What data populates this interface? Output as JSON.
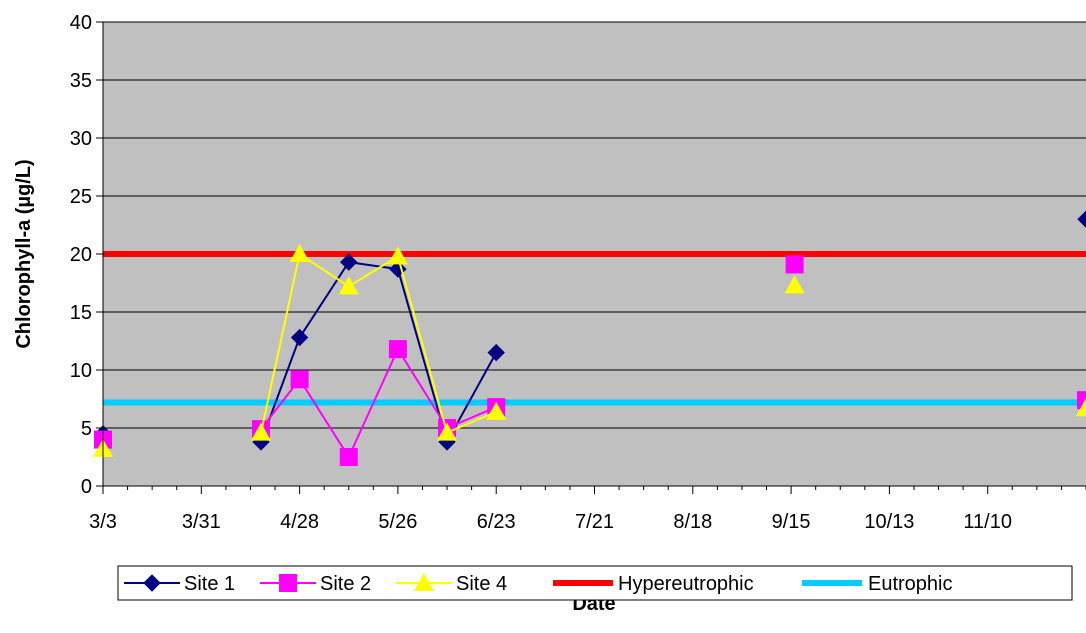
{
  "chart_data": {
    "type": "line",
    "title": "",
    "xlabel": "Date",
    "ylabel": "Chlorophyll-a (µg/L)",
    "ylim": [
      0,
      40
    ],
    "y_ticks": [
      0,
      5,
      10,
      15,
      20,
      25,
      30,
      35,
      40
    ],
    "x_ticks": [
      "3/3",
      "3/31",
      "4/28",
      "5/26",
      "6/23",
      "7/21",
      "8/18",
      "9/15",
      "10/13",
      "11/10"
    ],
    "xlim": [
      "3/3",
      "12/8"
    ],
    "grid": "horizontal",
    "plot_background": "#c0c0c0",
    "legend_position": "bottom",
    "series": [
      {
        "name": "Site 1",
        "marker": "diamond",
        "color": "#000080",
        "points": [
          {
            "x": "3/3",
            "y": 4.5
          },
          {
            "x": "4/17",
            "y": 3.8
          },
          {
            "x": "4/28",
            "y": 12.8
          },
          {
            "x": "5/12",
            "y": 19.3
          },
          {
            "x": "5/26",
            "y": 18.7
          },
          {
            "x": "6/9",
            "y": 3.8
          },
          {
            "x": "6/23",
            "y": 11.5
          },
          {
            "x": "12/8",
            "y": 23.0
          }
        ]
      },
      {
        "name": "Site 2",
        "marker": "square",
        "color": "#ff00ff",
        "points": [
          {
            "x": "3/3",
            "y": 4.0
          },
          {
            "x": "4/17",
            "y": 4.9
          },
          {
            "x": "4/28",
            "y": 9.2
          },
          {
            "x": "5/12",
            "y": 2.5
          },
          {
            "x": "5/26",
            "y": 11.8
          },
          {
            "x": "6/9",
            "y": 5.0
          },
          {
            "x": "6/23",
            "y": 6.8
          },
          {
            "x": "9/16",
            "y": 19.1
          },
          {
            "x": "12/8",
            "y": 7.4
          }
        ]
      },
      {
        "name": "Site 4",
        "marker": "triangle",
        "color": "#ffff00",
        "points": [
          {
            "x": "3/3",
            "y": 3.2
          },
          {
            "x": "4/17",
            "y": 4.6
          },
          {
            "x": "4/28",
            "y": 20.0
          },
          {
            "x": "5/12",
            "y": 17.2
          },
          {
            "x": "5/26",
            "y": 19.8
          },
          {
            "x": "6/9",
            "y": 4.6
          },
          {
            "x": "6/23",
            "y": 6.4
          },
          {
            "x": "9/16",
            "y": 17.3
          },
          {
            "x": "12/8",
            "y": 6.7
          }
        ]
      },
      {
        "name": "Hypereutrophic",
        "marker": "none",
        "color": "#ff0000",
        "points": [
          {
            "x": "3/3",
            "y": 20
          },
          {
            "x": "12/8",
            "y": 20
          }
        ]
      },
      {
        "name": "Eutrophic",
        "marker": "none",
        "color": "#00ccff",
        "points": [
          {
            "x": "3/3",
            "y": 7.2
          },
          {
            "x": "12/8",
            "y": 7.2
          }
        ]
      }
    ]
  }
}
